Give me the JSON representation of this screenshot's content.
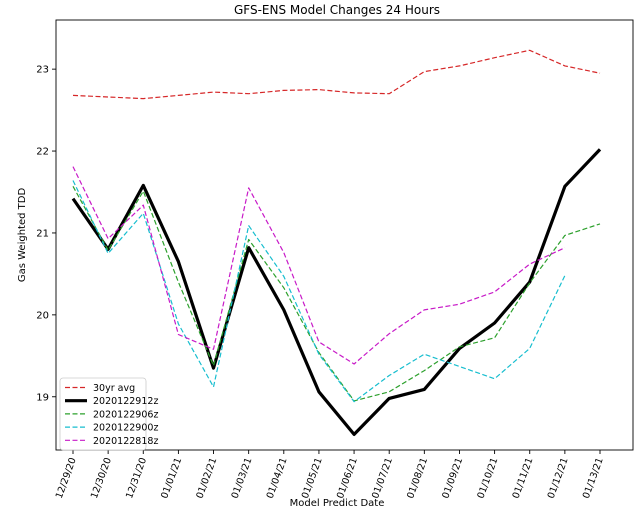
{
  "chart_data": {
    "type": "line",
    "title": "GFS-ENS Model Changes 24 Hours",
    "xlabel": "Model Predict Date",
    "ylabel": "Gas Weighted TDD",
    "ylim": [
      18.35,
      23.6
    ],
    "yticks": [
      19,
      20,
      21,
      22,
      23
    ],
    "grid": false,
    "legend_position": "lower-left",
    "categories": [
      "12/29/20",
      "12/30/20",
      "12/31/20",
      "01/01/21",
      "01/02/21",
      "01/03/21",
      "01/04/21",
      "01/05/21",
      "01/06/21",
      "01/07/21",
      "01/08/21",
      "01/09/21",
      "01/10/21",
      "01/11/21",
      "01/12/21",
      "01/13/21"
    ],
    "series": [
      {
        "name": "30yr avg",
        "color": "#d62728",
        "style": "dashed",
        "width": 1.2,
        "values": [
          22.68,
          22.66,
          22.64,
          22.68,
          22.72,
          22.7,
          22.74,
          22.75,
          22.71,
          22.7,
          22.97,
          23.04,
          23.14,
          23.23,
          23.04,
          22.95
        ]
      },
      {
        "name": "2020122912z",
        "color": "#000000",
        "style": "solid",
        "width": 3.2,
        "values": [
          21.42,
          20.8,
          21.58,
          20.65,
          19.35,
          20.82,
          20.06,
          19.06,
          18.54,
          18.98,
          19.09,
          19.59,
          19.9,
          20.4,
          21.57,
          22.02
        ]
      },
      {
        "name": "2020122906z",
        "color": "#2ca02c",
        "style": "dashed",
        "width": 1.2,
        "values": [
          21.57,
          20.79,
          21.51,
          20.4,
          19.38,
          20.92,
          20.33,
          19.54,
          18.95,
          19.06,
          19.32,
          19.61,
          19.72,
          20.39,
          20.97,
          21.11
        ]
      },
      {
        "name": "2020122900z",
        "color": "#17becf",
        "style": "dashed",
        "width": 1.2,
        "values": [
          21.64,
          20.75,
          21.24,
          19.89,
          19.12,
          21.09,
          20.47,
          19.52,
          18.94,
          19.26,
          19.52,
          19.37,
          19.22,
          19.59,
          20.48,
          null
        ]
      },
      {
        "name": "2020122818z",
        "color": "#c81bc8",
        "style": "dashed",
        "width": 1.2,
        "values": [
          21.81,
          20.93,
          21.34,
          19.76,
          19.58,
          21.55,
          20.76,
          19.67,
          19.4,
          19.77,
          20.06,
          20.13,
          20.28,
          20.62,
          20.82,
          null
        ]
      }
    ]
  }
}
